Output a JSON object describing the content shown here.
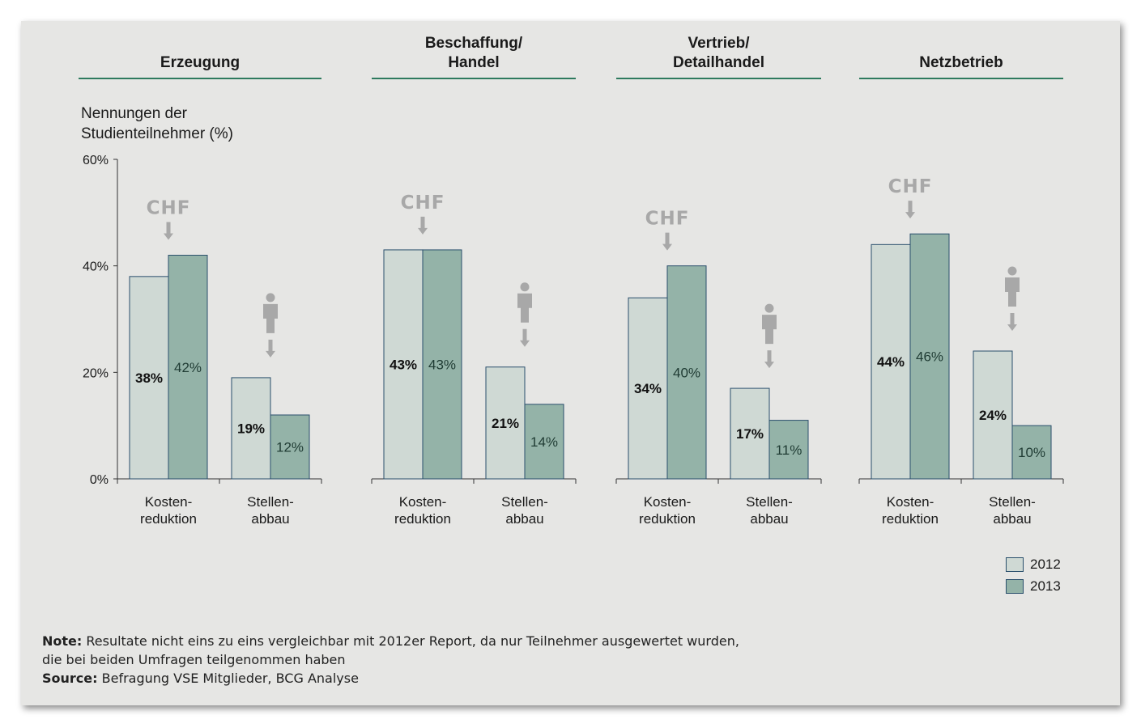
{
  "chart_data": {
    "type": "bar",
    "y_axis_title": "Nennungen der\nStudienteilnehmer (%)",
    "yticks": [
      "60%",
      "40%",
      "20%",
      "0%"
    ],
    "ylim": [
      0,
      60
    ],
    "grid": false,
    "legend": {
      "placement": "bottom-right",
      "entries": [
        {
          "name": "2012",
          "color": "#cfd9d4"
        },
        {
          "name": "2013",
          "color": "#94b3a8"
        }
      ]
    },
    "series_colors": {
      "2012": "#cfd9d4",
      "2013": "#94b3a8",
      "border": "#2a4f6c"
    },
    "panels": [
      {
        "title": "Erzeugung",
        "categories": [
          "Kosten-\nreduktion",
          "Stellen-\nabbau"
        ],
        "series": [
          {
            "name": "2012",
            "values": [
              38,
              19
            ],
            "labels": [
              "38%",
              "19%"
            ]
          },
          {
            "name": "2013",
            "values": [
              42,
              12
            ],
            "labels": [
              "42%",
              "12%"
            ]
          }
        ],
        "icon_labels": [
          "CHF"
        ]
      },
      {
        "title": "Beschaffung/\nHandel",
        "categories": [
          "Kosten-\nreduktion",
          "Stellen-\nabbau"
        ],
        "series": [
          {
            "name": "2012",
            "values": [
              43,
              21
            ],
            "labels": [
              "43%",
              "21%"
            ]
          },
          {
            "name": "2013",
            "values": [
              43,
              14
            ],
            "labels": [
              "43%",
              "14%"
            ]
          }
        ],
        "icon_labels": [
          "CHF"
        ]
      },
      {
        "title": "Vertrieb/\nDetailhandel",
        "categories": [
          "Kosten-\nreduktion",
          "Stellen-\nabbau"
        ],
        "series": [
          {
            "name": "2012",
            "values": [
              34,
              17
            ],
            "labels": [
              "34%",
              "17%"
            ]
          },
          {
            "name": "2013",
            "values": [
              40,
              11
            ],
            "labels": [
              "40%",
              "11%"
            ]
          }
        ],
        "icon_labels": [
          "CHF"
        ]
      },
      {
        "title": "Netzbetrieb",
        "categories": [
          "Kosten-\nreduktion",
          "Stellen-\nabbau"
        ],
        "series": [
          {
            "name": "2012",
            "values": [
              44,
              24
            ],
            "labels": [
              "44%",
              "24%"
            ]
          },
          {
            "name": "2013",
            "values": [
              46,
              10
            ],
            "labels": [
              "46%",
              "10%"
            ]
          }
        ],
        "icon_labels": [
          "CHF"
        ]
      }
    ]
  },
  "footnote": {
    "note_label": "Note:",
    "note_text": " Resultate nicht eins zu eins vergleichbar mit 2012er Report, da nur Teilnehmer ausgewertet wurden,",
    "note_text_2": "die bei beiden Umfragen teilgenommen haben",
    "source_label": "Source:",
    "source_text": " Befragung VSE Mitglieder, BCG Analyse"
  },
  "colors": {
    "background": "#e6e6e4",
    "title_rule": "#2e7a5e",
    "icon_gray": "#a8a8a8",
    "axis": "#333333"
  },
  "icons": [
    "chf-coin-icon",
    "down-arrow-icon",
    "person-icon"
  ]
}
